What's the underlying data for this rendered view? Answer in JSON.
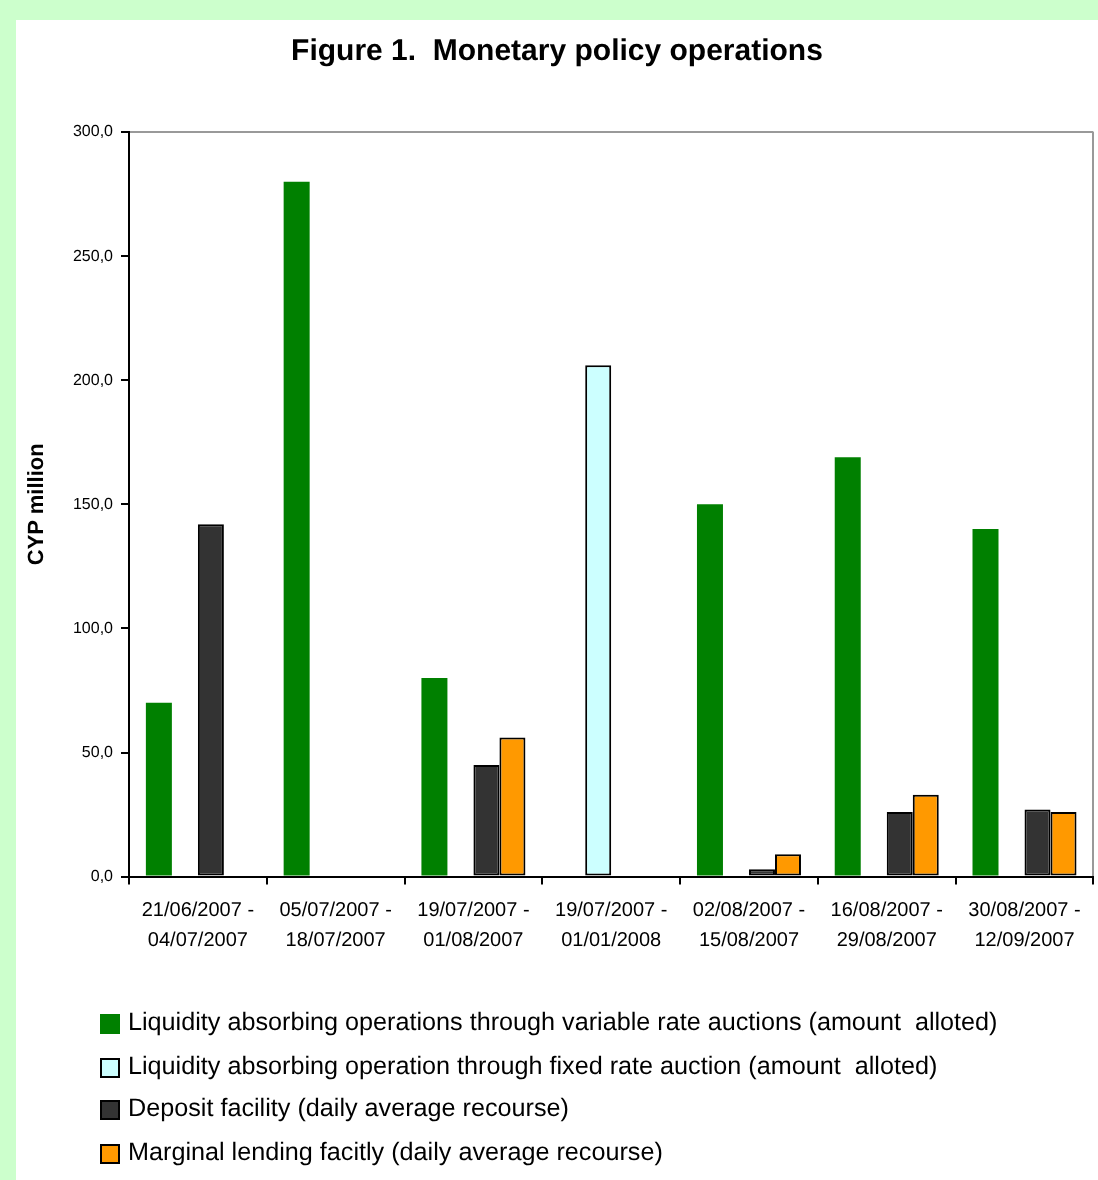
{
  "chart_data": {
    "type": "bar",
    "title": "Figure 1.  Monetary policy operations",
    "ylabel": "CYP million",
    "categories": [
      "21/06/2007 - 04/07/2007",
      "05/07/2007 - 18/07/2007",
      "19/07/2007 - 01/08/2007",
      "19/07/2007 - 01/01/2008",
      "02/08/2007 - 15/08/2007",
      "16/08/2007 - 29/08/2007",
      "30/08/2007 - 12/09/2007"
    ],
    "series": [
      {
        "name": "Liquidity absorbing operations through variable rate auctions (amount  alloted)",
        "color": "#008000",
        "values": [
          70,
          280,
          80,
          null,
          150,
          169,
          140
        ]
      },
      {
        "name": "Liquidity absorbing operation through fixed rate auction (amount  alloted)",
        "color": "#ccffff",
        "values": [
          null,
          null,
          null,
          206,
          null,
          null,
          null
        ]
      },
      {
        "name": "Deposit facility (daily average recourse)",
        "color": "#333333",
        "values": [
          142,
          null,
          45,
          null,
          3,
          26,
          27
        ]
      },
      {
        "name": "Marginal lending facitly (daily average recourse)",
        "color": "#ff9900",
        "values": [
          null,
          null,
          56,
          null,
          9,
          33,
          26
        ]
      }
    ],
    "ylim": [
      0,
      300
    ],
    "yticks": [
      {
        "value": 0,
        "label": "0,0"
      },
      {
        "value": 50,
        "label": "50,0"
      },
      {
        "value": 100,
        "label": "100,0"
      },
      {
        "value": 150,
        "label": "150,0"
      },
      {
        "value": 200,
        "label": "200,0"
      },
      {
        "value": 250,
        "label": "250,0"
      },
      {
        "value": 300,
        "label": "300,0"
      }
    ],
    "legend": "bottom"
  }
}
